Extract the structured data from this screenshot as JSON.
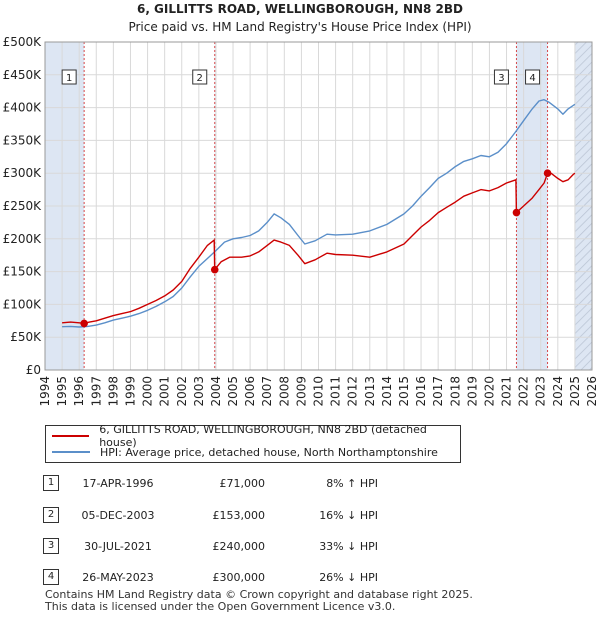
{
  "title_line1": "6, GILLITTS ROAD, WELLINGBOROUGH, NN8 2BD",
  "title_line2": "Price paid vs. HM Land Registry's House Price Index (HPI)",
  "colors": {
    "property": "#cc0000",
    "hpi": "#5b8fc9",
    "band": "#dde6f3",
    "grid": "#d9d9d9"
  },
  "chart_data": {
    "type": "line",
    "ylim": [
      0,
      500000
    ],
    "xlim": [
      1994,
      2026
    ],
    "yticks": [
      {
        "value": 0,
        "label": "£0"
      },
      {
        "value": 50000,
        "label": "£50K"
      },
      {
        "value": 100000,
        "label": "£100K"
      },
      {
        "value": 150000,
        "label": "£150K"
      },
      {
        "value": 200000,
        "label": "£200K"
      },
      {
        "value": 250000,
        "label": "£250K"
      },
      {
        "value": 300000,
        "label": "£300K"
      },
      {
        "value": 350000,
        "label": "£350K"
      },
      {
        "value": 400000,
        "label": "£400K"
      },
      {
        "value": 450000,
        "label": "£450K"
      },
      {
        "value": 500000,
        "label": "£500K"
      }
    ],
    "xticks": [
      "1994",
      "1995",
      "1996",
      "1997",
      "1998",
      "1999",
      "2000",
      "2001",
      "2002",
      "2003",
      "2004",
      "2005",
      "2006",
      "2007",
      "2008",
      "2009",
      "2010",
      "2011",
      "2012",
      "2013",
      "2014",
      "2015",
      "2016",
      "2017",
      "2018",
      "2019",
      "2020",
      "2021",
      "2022",
      "2023",
      "2024",
      "2025",
      "2026"
    ],
    "data_range": [
      1995,
      2025
    ],
    "series": [
      {
        "name": "6, GILLITTS ROAD, WELLINGBOROUGH, NN8 2BD (detached house)",
        "points": [
          [
            1995.0,
            72000
          ],
          [
            1995.5,
            73000
          ],
          [
            1996.0,
            72000
          ],
          [
            1996.29,
            71000
          ],
          [
            1996.6,
            73000
          ],
          [
            1997.0,
            75000
          ],
          [
            1997.5,
            79000
          ],
          [
            1998.0,
            83000
          ],
          [
            1998.5,
            86000
          ],
          [
            1999.0,
            89000
          ],
          [
            1999.5,
            94000
          ],
          [
            2000.0,
            100000
          ],
          [
            2000.5,
            106000
          ],
          [
            2001.0,
            113000
          ],
          [
            2001.5,
            122000
          ],
          [
            2002.0,
            135000
          ],
          [
            2002.5,
            155000
          ],
          [
            2003.0,
            172000
          ],
          [
            2003.5,
            190000
          ],
          [
            2003.9,
            198000
          ],
          [
            2003.93,
            153000
          ],
          [
            2004.3,
            165000
          ],
          [
            2004.8,
            172000
          ],
          [
            2005.5,
            172000
          ],
          [
            2006.0,
            174000
          ],
          [
            2006.5,
            180000
          ],
          [
            2007.0,
            190000
          ],
          [
            2007.4,
            198000
          ],
          [
            2007.8,
            195000
          ],
          [
            2008.3,
            190000
          ],
          [
            2008.8,
            175000
          ],
          [
            2009.2,
            162000
          ],
          [
            2009.8,
            168000
          ],
          [
            2010.5,
            178000
          ],
          [
            2011.0,
            176000
          ],
          [
            2012.0,
            175000
          ],
          [
            2013.0,
            172000
          ],
          [
            2014.0,
            180000
          ],
          [
            2015.0,
            192000
          ],
          [
            2015.5,
            205000
          ],
          [
            2016.0,
            218000
          ],
          [
            2016.5,
            228000
          ],
          [
            2017.0,
            240000
          ],
          [
            2017.5,
            248000
          ],
          [
            2018.0,
            256000
          ],
          [
            2018.5,
            265000
          ],
          [
            2019.0,
            270000
          ],
          [
            2019.5,
            275000
          ],
          [
            2020.0,
            273000
          ],
          [
            2020.5,
            278000
          ],
          [
            2021.0,
            285000
          ],
          [
            2021.55,
            290000
          ],
          [
            2021.58,
            240000
          ],
          [
            2022.0,
            250000
          ],
          [
            2022.5,
            262000
          ],
          [
            2022.9,
            275000
          ],
          [
            2023.2,
            285000
          ],
          [
            2023.4,
            300000
          ],
          [
            2023.6,
            300000
          ],
          [
            2024.0,
            292000
          ],
          [
            2024.3,
            287000
          ],
          [
            2024.6,
            290000
          ],
          [
            2024.9,
            298000
          ],
          [
            2025.0,
            300000
          ]
        ]
      },
      {
        "name": "HPI: Average price, detached house, North Northamptonshire",
        "points": [
          [
            1995.0,
            66000
          ],
          [
            1995.5,
            66500
          ],
          [
            1996.0,
            65500
          ],
          [
            1996.5,
            66500
          ],
          [
            1997.0,
            68500
          ],
          [
            1997.5,
            72000
          ],
          [
            1998.0,
            76000
          ],
          [
            1998.5,
            79000
          ],
          [
            1999.0,
            82000
          ],
          [
            1999.5,
            86000
          ],
          [
            2000.0,
            91000
          ],
          [
            2000.5,
            97000
          ],
          [
            2001.0,
            104000
          ],
          [
            2001.5,
            112000
          ],
          [
            2002.0,
            125000
          ],
          [
            2002.5,
            142000
          ],
          [
            2003.0,
            158000
          ],
          [
            2003.5,
            170000
          ],
          [
            2004.0,
            182000
          ],
          [
            2004.5,
            195000
          ],
          [
            2005.0,
            200000
          ],
          [
            2005.5,
            202000
          ],
          [
            2006.0,
            205000
          ],
          [
            2006.5,
            212000
          ],
          [
            2007.0,
            225000
          ],
          [
            2007.4,
            238000
          ],
          [
            2007.8,
            232000
          ],
          [
            2008.3,
            222000
          ],
          [
            2008.8,
            205000
          ],
          [
            2009.2,
            192000
          ],
          [
            2009.8,
            197000
          ],
          [
            2010.5,
            207000
          ],
          [
            2011.0,
            206000
          ],
          [
            2012.0,
            207000
          ],
          [
            2013.0,
            212000
          ],
          [
            2014.0,
            222000
          ],
          [
            2015.0,
            238000
          ],
          [
            2015.5,
            250000
          ],
          [
            2016.0,
            265000
          ],
          [
            2016.5,
            278000
          ],
          [
            2017.0,
            292000
          ],
          [
            2017.5,
            300000
          ],
          [
            2018.0,
            310000
          ],
          [
            2018.5,
            318000
          ],
          [
            2019.0,
            322000
          ],
          [
            2019.5,
            327000
          ],
          [
            2020.0,
            325000
          ],
          [
            2020.5,
            332000
          ],
          [
            2021.0,
            345000
          ],
          [
            2021.5,
            362000
          ],
          [
            2022.0,
            380000
          ],
          [
            2022.5,
            398000
          ],
          [
            2022.9,
            410000
          ],
          [
            2023.2,
            412000
          ],
          [
            2023.5,
            408000
          ],
          [
            2024.0,
            398000
          ],
          [
            2024.3,
            390000
          ],
          [
            2024.6,
            398000
          ],
          [
            2025.0,
            405000
          ]
        ]
      }
    ],
    "transactions": [
      {
        "num": "1",
        "x": 1996.29,
        "y": 71000
      },
      {
        "num": "2",
        "x": 2003.93,
        "y": 153000
      },
      {
        "num": "3",
        "x": 2021.58,
        "y": 240000
      },
      {
        "num": "4",
        "x": 2023.4,
        "y": 300000
      }
    ],
    "shaded_bands": [
      [
        1994,
        1996.29
      ],
      [
        2003.93,
        2003.96
      ],
      [
        2021.58,
        2023.4
      ],
      [
        2025.0,
        2026
      ]
    ]
  },
  "legend": {
    "property_label": "6, GILLITTS ROAD, WELLINGBOROUGH, NN8 2BD (detached house)",
    "hpi_label": "HPI: Average price, detached house, North Northamptonshire"
  },
  "table": [
    {
      "num": "1",
      "date": "17-APR-1996",
      "price": "£71,000",
      "hpi": "8% ↑ HPI"
    },
    {
      "num": "2",
      "date": "05-DEC-2003",
      "price": "£153,000",
      "hpi": "16% ↓ HPI"
    },
    {
      "num": "3",
      "date": "30-JUL-2021",
      "price": "£240,000",
      "hpi": "33% ↓ HPI"
    },
    {
      "num": "4",
      "date": "26-MAY-2023",
      "price": "£300,000",
      "hpi": "26% ↓ HPI"
    }
  ],
  "footer_line1": "Contains HM Land Registry data © Crown copyright and database right 2025.",
  "footer_line2": "This data is licensed under the Open Government Licence v3.0."
}
